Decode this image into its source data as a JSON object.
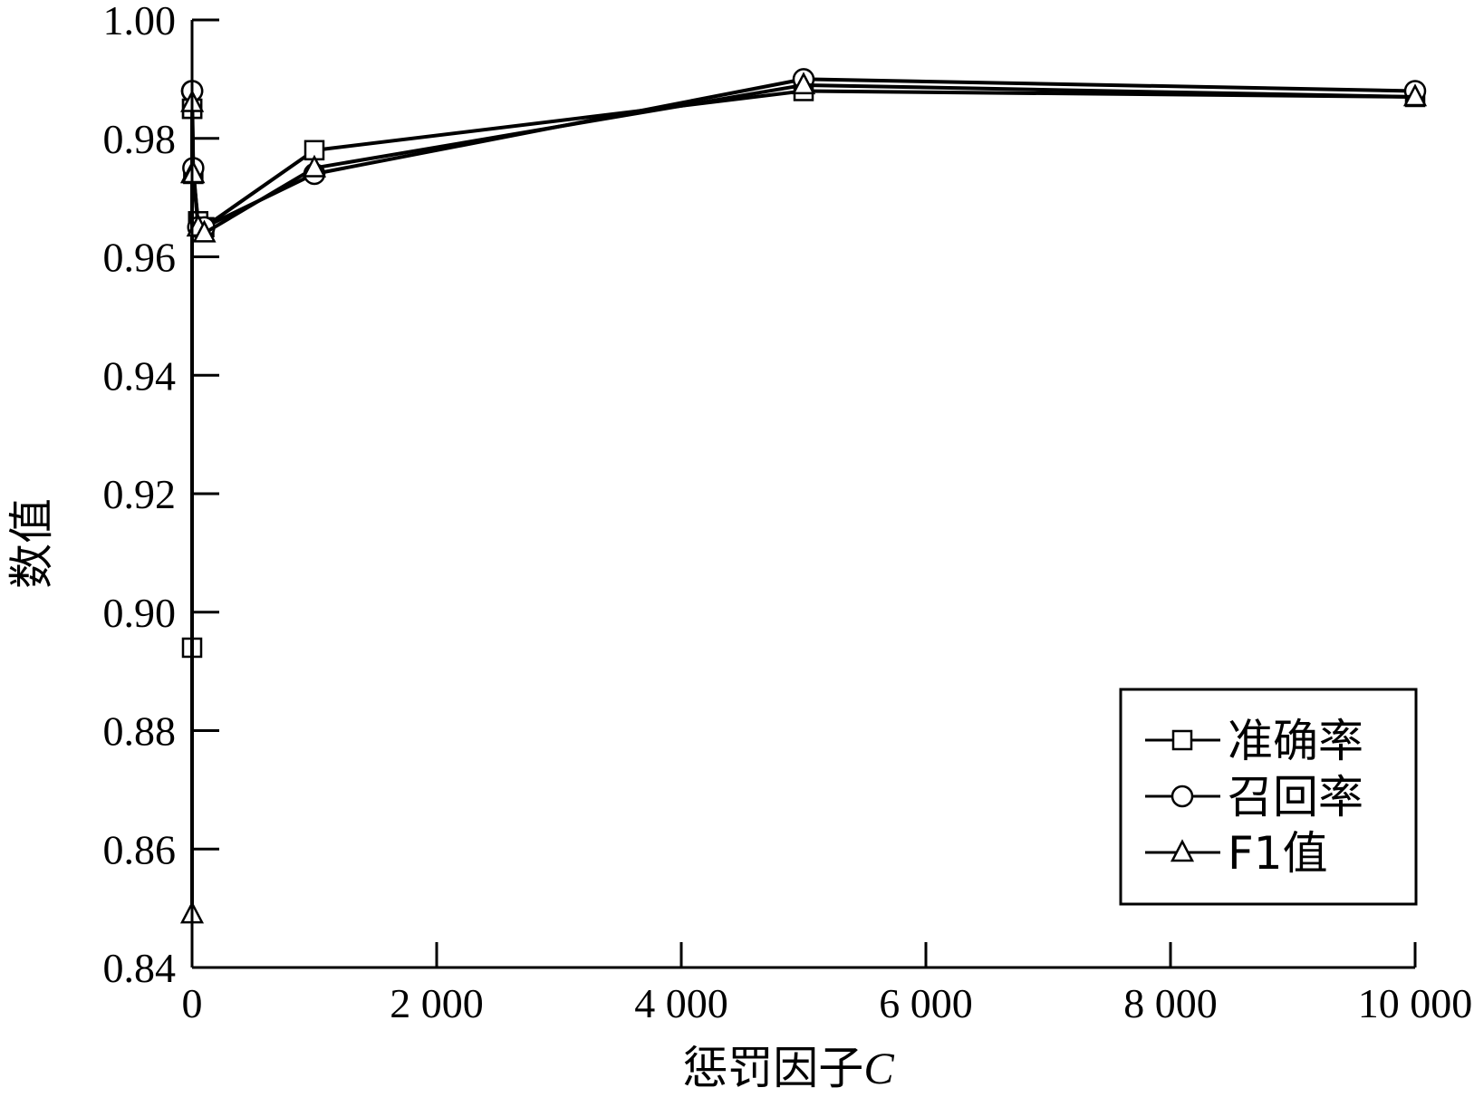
{
  "chart_data": {
    "type": "line",
    "xlabel": "惩罚因子",
    "xlabel_var": "C",
    "ylabel": "数值",
    "xlim": [
      0,
      10000
    ],
    "ylim": [
      0.84,
      1.0
    ],
    "x_ticks": [
      0,
      2000,
      4000,
      6000,
      8000,
      10000
    ],
    "x_tick_labels": [
      "0",
      "2 000",
      "4 000",
      "6 000",
      "8 000",
      "10 000"
    ],
    "y_ticks": [
      0.84,
      0.86,
      0.88,
      0.9,
      0.92,
      0.94,
      0.96,
      0.98,
      1.0
    ],
    "y_tick_labels": [
      "0.84",
      "0.86",
      "0.88",
      "0.90",
      "0.92",
      "0.94",
      "0.96",
      "0.98",
      "1.00"
    ],
    "legend_position": "bottom-right",
    "x": [
      0.01,
      0.1,
      1,
      10,
      50,
      100,
      1000,
      5000,
      10000
    ],
    "series": [
      {
        "name": "准确率",
        "marker": "square",
        "values": [
          0.894,
          0.985,
          0.985,
          0.974,
          0.966,
          0.965,
          0.978,
          0.988,
          0.987
        ]
      },
      {
        "name": "召回率",
        "marker": "circle",
        "values": [
          0.988,
          0.988,
          0.988,
          0.975,
          0.965,
          0.965,
          0.974,
          0.99,
          0.988
        ]
      },
      {
        "name": "F1值",
        "marker": "triangle",
        "values": [
          0.849,
          0.974,
          0.986,
          0.974,
          0.965,
          0.964,
          0.975,
          0.989,
          0.987
        ]
      }
    ]
  }
}
